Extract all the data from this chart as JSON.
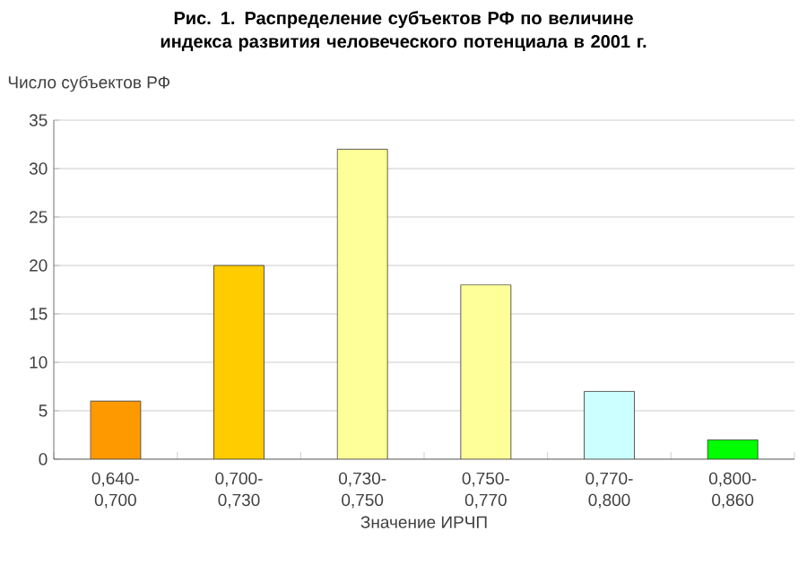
{
  "chart_data": {
    "type": "bar",
    "title": "Рис. 1. Распределение субъектов РФ по величине индекса развития человеческого потенциала в 2001 г.",
    "ylabel": "Число субъектов РФ",
    "xlabel": "Значение ИРЧП",
    "categories": [
      "0,640-0,700",
      "0,700-0,730",
      "0,730-0,750",
      "0,750-0,770",
      "0,770-0,800",
      "0,800-0,860"
    ],
    "values": [
      6,
      20,
      32,
      18,
      7,
      2
    ],
    "colors": [
      "#ff9900",
      "#ffcc00",
      "#ffff99",
      "#ffff99",
      "#ccffff",
      "#00ff00"
    ],
    "ylim": [
      0,
      35
    ],
    "yticks": [
      0,
      5,
      10,
      15,
      20,
      25,
      30,
      35
    ],
    "grid": "y"
  }
}
